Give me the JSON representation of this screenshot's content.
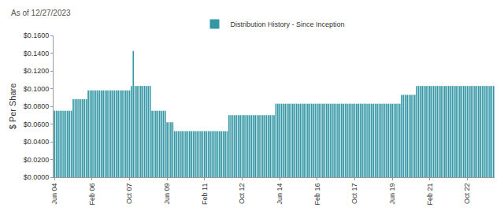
{
  "chart_data": {
    "type": "bar",
    "annotations": [
      "As of 12/27/2023"
    ],
    "y_label": "$ Per Share",
    "legend": "top",
    "grid": false,
    "series": [
      {
        "name": "Distribution History - Since Inception",
        "color": "#3497a5",
        "values": [
          0.075,
          0.075,
          0.075,
          0.075,
          0.075,
          0.075,
          0.075,
          0.075,
          0.075,
          0.075,
          0.088,
          0.088,
          0.088,
          0.088,
          0.088,
          0.088,
          0.088,
          0.088,
          0.098,
          0.098,
          0.098,
          0.098,
          0.098,
          0.098,
          0.098,
          0.098,
          0.098,
          0.098,
          0.098,
          0.098,
          0.098,
          0.098,
          0.098,
          0.098,
          0.098,
          0.098,
          0.098,
          0.098,
          0.098,
          0.098,
          0.098,
          0.103,
          0.1425,
          0.103,
          0.103,
          0.103,
          0.103,
          0.103,
          0.103,
          0.103,
          0.103,
          0.103,
          0.075,
          0.075,
          0.075,
          0.075,
          0.075,
          0.075,
          0.075,
          0.075,
          0.062,
          0.062,
          0.062,
          0.062,
          0.052,
          0.052,
          0.052,
          0.052,
          0.052,
          0.052,
          0.052,
          0.052,
          0.052,
          0.052,
          0.052,
          0.052,
          0.052,
          0.052,
          0.052,
          0.052,
          0.052,
          0.052,
          0.052,
          0.052,
          0.052,
          0.052,
          0.052,
          0.052,
          0.052,
          0.052,
          0.052,
          0.052,
          0.052,
          0.07,
          0.07,
          0.07,
          0.07,
          0.07,
          0.07,
          0.07,
          0.07,
          0.07,
          0.07,
          0.07,
          0.07,
          0.07,
          0.07,
          0.07,
          0.07,
          0.07,
          0.07,
          0.07,
          0.07,
          0.07,
          0.07,
          0.07,
          0.07,
          0.07,
          0.083,
          0.083,
          0.083,
          0.083,
          0.083,
          0.083,
          0.083,
          0.083,
          0.083,
          0.083,
          0.083,
          0.083,
          0.083,
          0.083,
          0.083,
          0.083,
          0.083,
          0.083,
          0.083,
          0.083,
          0.083,
          0.083,
          0.083,
          0.083,
          0.083,
          0.083,
          0.083,
          0.083,
          0.083,
          0.083,
          0.083,
          0.083,
          0.083,
          0.083,
          0.083,
          0.083,
          0.083,
          0.083,
          0.083,
          0.083,
          0.083,
          0.083,
          0.083,
          0.083,
          0.083,
          0.083,
          0.083,
          0.083,
          0.083,
          0.083,
          0.083,
          0.083,
          0.083,
          0.083,
          0.083,
          0.083,
          0.083,
          0.083,
          0.083,
          0.083,
          0.083,
          0.083,
          0.083,
          0.083,
          0.083,
          0.083,
          0.083,
          0.093,
          0.093,
          0.093,
          0.093,
          0.093,
          0.093,
          0.093,
          0.093,
          0.103,
          0.103,
          0.103,
          0.103,
          0.103,
          0.103,
          0.103,
          0.103,
          0.103,
          0.103,
          0.103,
          0.103,
          0.103,
          0.103,
          0.103,
          0.103,
          0.103,
          0.103,
          0.103,
          0.103,
          0.103,
          0.103,
          0.103,
          0.103,
          0.103,
          0.103,
          0.103,
          0.103,
          0.103,
          0.103,
          0.103,
          0.103,
          0.103,
          0.103,
          0.103,
          0.103,
          0.103,
          0.103,
          0.103,
          0.103,
          0.103,
          0.103
        ]
      }
    ],
    "categories": [
      "Jun 04",
      null,
      null,
      null,
      null,
      null,
      null,
      null,
      null,
      null,
      null,
      null,
      null,
      null,
      null,
      null,
      null,
      null,
      null,
      null,
      "Feb 06",
      null,
      null,
      null,
      null,
      null,
      null,
      null,
      null,
      null,
      null,
      null,
      null,
      null,
      null,
      null,
      null,
      null,
      null,
      null,
      "Oct 07",
      null,
      null,
      null,
      null,
      null,
      null,
      null,
      null,
      null,
      null,
      null,
      null,
      null,
      null,
      null,
      null,
      null,
      null,
      null,
      "Jun 09",
      null,
      null,
      null,
      null,
      null,
      null,
      null,
      null,
      null,
      null,
      null,
      null,
      null,
      null,
      null,
      null,
      null,
      null,
      null,
      "Feb 11",
      null,
      null,
      null,
      null,
      null,
      null,
      null,
      null,
      null,
      null,
      null,
      null,
      null,
      null,
      null,
      null,
      null,
      null,
      null,
      "Oct 12",
      null,
      null,
      null,
      null,
      null,
      null,
      null,
      null,
      null,
      null,
      null,
      null,
      null,
      null,
      null,
      null,
      null,
      null,
      null,
      "Jun 14",
      null,
      null,
      null,
      null,
      null,
      null,
      null,
      null,
      null,
      null,
      null,
      null,
      null,
      null,
      null,
      null,
      null,
      null,
      null,
      "Feb 16",
      null,
      null,
      null,
      null,
      null,
      null,
      null,
      null,
      null,
      null,
      null,
      null,
      null,
      null,
      null,
      null,
      null,
      null,
      null,
      "Oct 17",
      null,
      null,
      null,
      null,
      null,
      null,
      null,
      null,
      null,
      null,
      null,
      null,
      null,
      null,
      null,
      null,
      null,
      null,
      null,
      "Jun 19",
      null,
      null,
      null,
      null,
      null,
      null,
      null,
      null,
      null,
      null,
      null,
      null,
      null,
      null,
      null,
      null,
      null,
      null,
      null,
      "Feb 21",
      null,
      null,
      null,
      null,
      null,
      null,
      null,
      null,
      null,
      null,
      null,
      null,
      null,
      null,
      null,
      null,
      null,
      null,
      null,
      "Oct 22",
      null,
      null,
      null,
      null,
      null,
      null,
      null,
      null,
      null,
      null,
      null,
      null,
      null,
      null
    ],
    "ylim": [
      0,
      0.16
    ],
    "yticks": [
      {
        "value": 0,
        "label": "$0.0000"
      },
      {
        "value": 0.02,
        "label": "$0.0200"
      },
      {
        "value": 0.04,
        "label": "$0.0400"
      },
      {
        "value": 0.06,
        "label": "$0.0600"
      },
      {
        "value": 0.08,
        "label": "$0.0800"
      },
      {
        "value": 0.1,
        "label": "$0.1000"
      },
      {
        "value": 0.12,
        "label": "$0.1200"
      },
      {
        "value": 0.14,
        "label": "$0.1400"
      },
      {
        "value": 0.16,
        "label": "$0.1600"
      }
    ]
  }
}
